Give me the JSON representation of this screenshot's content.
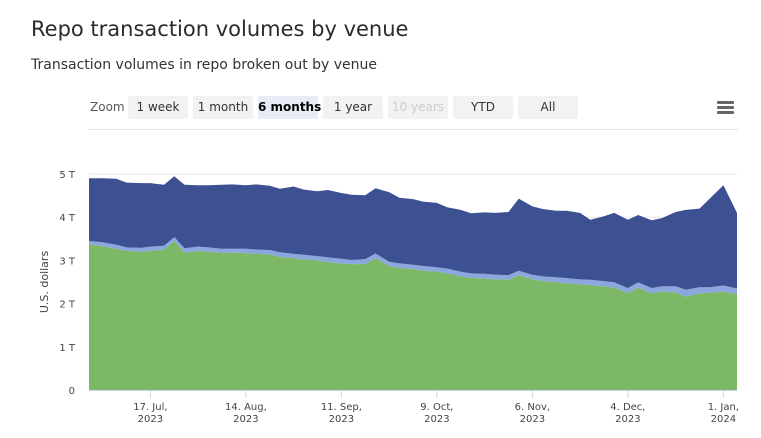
{
  "title": "Repo transaction volumes by venue",
  "subtitle": "Transaction volumes in repo broken out by venue",
  "zoom": {
    "label": "Zoom",
    "buttons": [
      "1 week",
      "1 month",
      "6 months",
      "1 year",
      "10 years",
      "YTD",
      "All"
    ],
    "selected": "6 months",
    "disabled": [
      "10 years"
    ]
  },
  "menu_icon": "hamburger-menu-icon",
  "chart_data": {
    "type": "area",
    "stacked": true,
    "ylabel": "U.S. dollars",
    "ylim": [
      0,
      5
    ],
    "y_ticks": [
      0,
      1,
      2,
      3,
      4,
      5
    ],
    "y_tick_labels": [
      "0",
      "1 T",
      "2 T",
      "3 T",
      "4 T",
      "5 T"
    ],
    "x_range": [
      "2023-06-29",
      "2024-01-05"
    ],
    "x_ticks": [
      "2023-07-17",
      "2023-08-14",
      "2023-09-11",
      "2023-10-09",
      "2023-11-06",
      "2023-12-04",
      "2024-01-01"
    ],
    "x_tick_labels": [
      [
        "17. Jul,",
        "2023"
      ],
      [
        "14. Aug,",
        "2023"
      ],
      [
        "11. Sep,",
        "2023"
      ],
      [
        "9. Oct,",
        "2023"
      ],
      [
        "6. Nov,",
        "2023"
      ],
      [
        "4. Dec,",
        "2023"
      ],
      [
        "1. Jan,",
        "2024"
      ]
    ],
    "grid": true,
    "legend": "none",
    "dates": [
      "2023-06-29",
      "2023-07-03",
      "2023-07-07",
      "2023-07-10",
      "2023-07-14",
      "2023-07-17",
      "2023-07-21",
      "2023-07-24",
      "2023-07-27",
      "2023-07-31",
      "2023-08-03",
      "2023-08-07",
      "2023-08-10",
      "2023-08-14",
      "2023-08-17",
      "2023-08-21",
      "2023-08-24",
      "2023-08-28",
      "2023-08-31",
      "2023-09-04",
      "2023-09-07",
      "2023-09-11",
      "2023-09-14",
      "2023-09-18",
      "2023-09-21",
      "2023-09-25",
      "2023-09-28",
      "2023-10-02",
      "2023-10-05",
      "2023-10-09",
      "2023-10-12",
      "2023-10-16",
      "2023-10-19",
      "2023-10-23",
      "2023-10-26",
      "2023-10-30",
      "2023-11-02",
      "2023-11-06",
      "2023-11-09",
      "2023-11-13",
      "2023-11-16",
      "2023-11-20",
      "2023-11-23",
      "2023-11-27",
      "2023-11-30",
      "2023-12-04",
      "2023-12-07",
      "2023-12-11",
      "2023-12-14",
      "2023-12-18",
      "2023-12-21",
      "2023-12-25",
      "2023-12-28",
      "2024-01-01",
      "2024-01-05"
    ],
    "series": [
      {
        "color": "#7cb866",
        "values": [
          3.37,
          3.33,
          3.27,
          3.22,
          3.2,
          3.22,
          3.25,
          3.45,
          3.18,
          3.22,
          3.2,
          3.18,
          3.18,
          3.17,
          3.15,
          3.14,
          3.08,
          3.05,
          3.02,
          3.0,
          2.96,
          2.93,
          2.91,
          2.92,
          3.05,
          2.87,
          2.83,
          2.8,
          2.76,
          2.74,
          2.7,
          2.63,
          2.6,
          2.58,
          2.56,
          2.55,
          2.66,
          2.56,
          2.52,
          2.5,
          2.47,
          2.45,
          2.43,
          2.4,
          2.37,
          2.24,
          2.37,
          2.24,
          2.28,
          2.26,
          2.16,
          2.24,
          2.25,
          2.28,
          2.22
        ]
      },
      {
        "color": "#8ca7de",
        "values": [
          0.08,
          0.09,
          0.09,
          0.08,
          0.09,
          0.1,
          0.09,
          0.09,
          0.1,
          0.1,
          0.1,
          0.09,
          0.09,
          0.1,
          0.1,
          0.1,
          0.11,
          0.1,
          0.11,
          0.1,
          0.11,
          0.11,
          0.1,
          0.11,
          0.11,
          0.1,
          0.1,
          0.1,
          0.11,
          0.1,
          0.11,
          0.11,
          0.1,
          0.11,
          0.11,
          0.11,
          0.1,
          0.11,
          0.11,
          0.11,
          0.12,
          0.11,
          0.12,
          0.12,
          0.12,
          0.12,
          0.12,
          0.12,
          0.12,
          0.14,
          0.16,
          0.14,
          0.13,
          0.14,
          0.13
        ]
      },
      {
        "color": "#3d5192",
        "values": [
          1.45,
          1.48,
          1.53,
          1.5,
          1.5,
          1.47,
          1.41,
          1.41,
          1.47,
          1.42,
          1.44,
          1.48,
          1.49,
          1.47,
          1.51,
          1.49,
          1.47,
          1.56,
          1.51,
          1.5,
          1.56,
          1.52,
          1.51,
          1.48,
          1.51,
          1.61,
          1.52,
          1.52,
          1.49,
          1.49,
          1.42,
          1.43,
          1.39,
          1.42,
          1.43,
          1.46,
          1.67,
          1.58,
          1.56,
          1.54,
          1.56,
          1.54,
          1.39,
          1.5,
          1.61,
          1.58,
          1.56,
          1.57,
          1.58,
          1.72,
          1.85,
          1.82,
          2.05,
          2.32,
          1.75
        ]
      }
    ]
  }
}
